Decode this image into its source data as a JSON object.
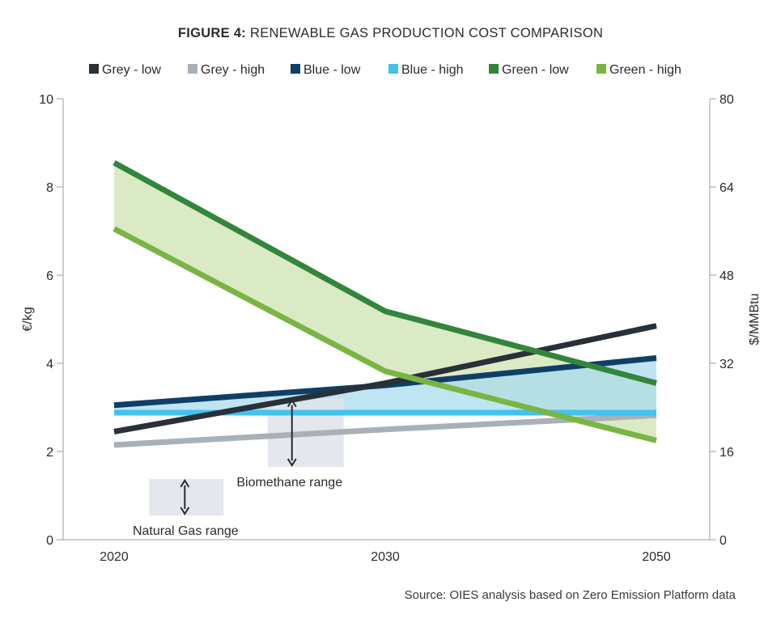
{
  "title_prefix": "FIGURE 4:",
  "title_text": "RENEWABLE GAS PRODUCTION COST COMPARISON",
  "source": "Source: OIES analysis based on Zero Emission Platform data",
  "chart_data": {
    "type": "line",
    "categories": [
      "2020",
      "2030",
      "2050"
    ],
    "ylabel": "€/kg",
    "ylabel_right": "$/MMBtu",
    "ylim": [
      0,
      10
    ],
    "yticks": [
      0,
      2,
      4,
      6,
      8,
      10
    ],
    "ylim_right": [
      0,
      80
    ],
    "yticks_right": [
      0,
      16,
      32,
      48,
      64,
      80
    ],
    "legend_position": "top",
    "grid": false,
    "series": [
      {
        "name": "Grey - low",
        "color": "#2a3038",
        "values": [
          2.45,
          3.55,
          4.85
        ]
      },
      {
        "name": "Grey - high",
        "color": "#a9b0b8",
        "values": [
          2.15,
          2.5,
          2.82
        ]
      },
      {
        "name": "Blue - low",
        "color": "#0f3f66",
        "values": [
          3.05,
          3.5,
          4.12
        ]
      },
      {
        "name": "Blue - high",
        "color": "#43c2ee",
        "values": [
          2.88,
          2.88,
          2.88
        ]
      },
      {
        "name": "Green - low",
        "color": "#33853b",
        "values": [
          8.55,
          5.18,
          3.55
        ]
      },
      {
        "name": "Green - high",
        "color": "#79b545",
        "values": [
          7.05,
          3.82,
          2.25
        ]
      }
    ],
    "bands": [
      {
        "between": [
          "Green - low",
          "Green - high"
        ],
        "color": "#cde3b2"
      },
      {
        "between": [
          "Blue - high",
          "Blue - low"
        ],
        "color": "#a9dbee"
      }
    ],
    "annotations": [
      {
        "text": "Natural Gas range",
        "x": 2024,
        "range": [
          0.55,
          1.38
        ],
        "color": "#dfe3ea"
      },
      {
        "text": "Biomethane range",
        "x": 2030.6,
        "range": [
          1.65,
          3.2
        ],
        "color": "#dfe3ea"
      }
    ]
  }
}
